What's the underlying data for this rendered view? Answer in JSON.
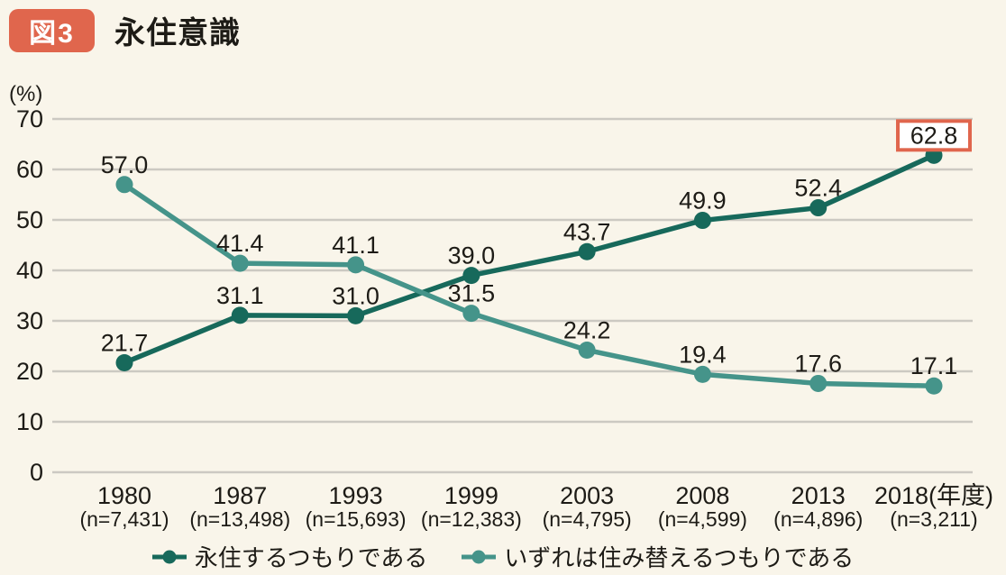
{
  "header": {
    "badge": "図3",
    "title": "永住意識"
  },
  "colors": {
    "background": "#f9f5ea",
    "badge": "#e0664d",
    "grid": "#ccc9c2",
    "text": "#1d1b16",
    "highlight_box_fill": "#ffffff"
  },
  "chart_data": {
    "type": "line",
    "title": "永住意識",
    "unit_label": "(%)",
    "xlabel": "",
    "ylabel": "(%)",
    "ylim": [
      0,
      70
    ],
    "yticks": [
      0,
      10,
      20,
      30,
      40,
      50,
      60,
      70
    ],
    "grid": "horizontal",
    "legend_position": "bottom",
    "categories": [
      "1980",
      "1987",
      "1993",
      "1999",
      "2003",
      "2008",
      "2013",
      "2018(年度)"
    ],
    "sample_sizes": [
      "(n=7,431)",
      "(n=13,498)",
      "(n=15,693)",
      "(n=12,383)",
      "(n=4,795)",
      "(n=4,599)",
      "(n=4,896)",
      "(n=3,211)"
    ],
    "series": [
      {
        "name": "永住するつもりである",
        "color": "#17695b",
        "values": [
          21.7,
          31.1,
          31.0,
          39.0,
          43.7,
          49.9,
          52.4,
          62.8
        ]
      },
      {
        "name": "いずれは住み替えるつもりである",
        "color": "#45948a",
        "values": [
          57.0,
          41.4,
          41.1,
          31.5,
          24.2,
          19.4,
          17.6,
          17.1
        ]
      }
    ],
    "highlight": {
      "series_index": 0,
      "point_index": 7,
      "label": "62.8",
      "box_color": "#e0664d"
    }
  }
}
